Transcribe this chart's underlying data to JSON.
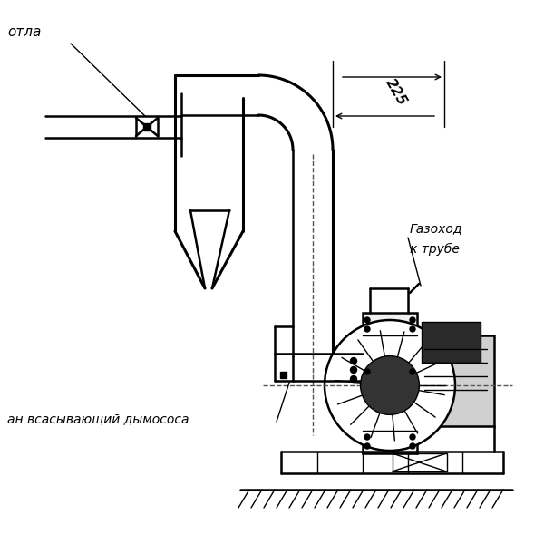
{
  "bg_color": "#ffffff",
  "line_color": "#000000",
  "label_kotla": "отла",
  "label_gazokhod1": "Газоход",
  "label_gazokhod2": "к трубе",
  "label_vsan": "ан всасывающий дымососа",
  "dim_225": "225",
  "figsize": [
    6.0,
    6.0
  ],
  "dpi": 100
}
